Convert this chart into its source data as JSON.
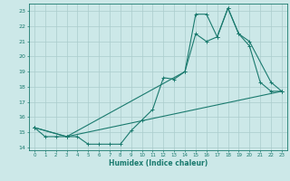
{
  "xlabel": "Humidex (Indice chaleur)",
  "bg_color": "#cce8e8",
  "grid_color": "#aacccc",
  "line_color": "#1a7a6e",
  "xlim": [
    -0.5,
    23.5
  ],
  "ylim": [
    13.8,
    23.5
  ],
  "yticks": [
    14,
    15,
    16,
    17,
    18,
    19,
    20,
    21,
    22,
    23
  ],
  "xticks": [
    0,
    1,
    2,
    3,
    4,
    5,
    6,
    7,
    8,
    9,
    10,
    11,
    12,
    13,
    14,
    15,
    16,
    17,
    18,
    19,
    20,
    21,
    22,
    23
  ],
  "line1_x": [
    0,
    1,
    2,
    3,
    4,
    5,
    6,
    7,
    8,
    9,
    10,
    11,
    12,
    13,
    14,
    15,
    16,
    17,
    18,
    19,
    20,
    21,
    22,
    23
  ],
  "line1_y": [
    15.3,
    14.7,
    14.7,
    14.7,
    14.7,
    14.2,
    14.2,
    14.2,
    14.2,
    15.1,
    15.8,
    16.5,
    18.6,
    18.5,
    19.0,
    21.5,
    21.0,
    21.3,
    23.2,
    21.5,
    20.7,
    18.3,
    17.7,
    17.7
  ],
  "line2_x": [
    0,
    3,
    14,
    15,
    16,
    17,
    18,
    19,
    20,
    22,
    23
  ],
  "line2_y": [
    15.3,
    14.7,
    19.0,
    22.8,
    22.8,
    21.3,
    23.2,
    21.5,
    21.0,
    18.3,
    17.7
  ],
  "line3_x": [
    0,
    3,
    23
  ],
  "line3_y": [
    15.3,
    14.7,
    17.7
  ]
}
